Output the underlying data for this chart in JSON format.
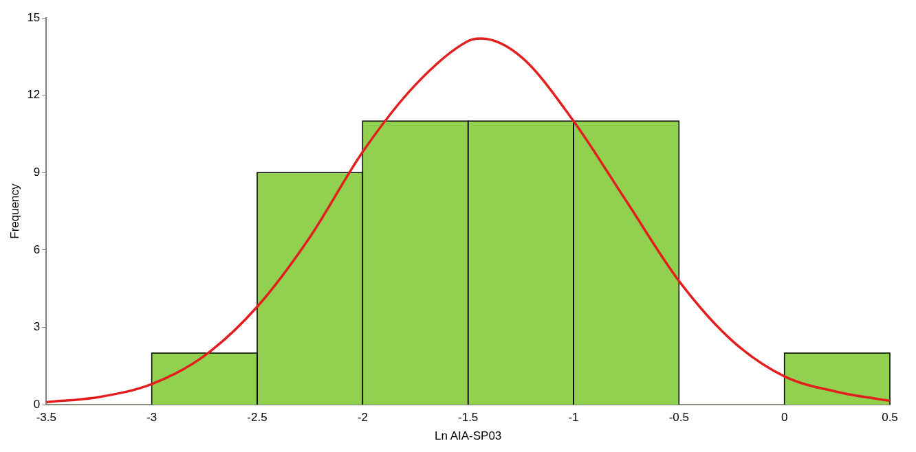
{
  "chart_data": {
    "type": "histogram",
    "xlabel": "Ln AIA-SP03",
    "ylabel": "Frequency",
    "bins": [
      -3.5,
      -3,
      -2.5,
      -2,
      -1.5,
      -1,
      -0.5,
      0,
      0.5
    ],
    "values": [
      0,
      2,
      9,
      11,
      11,
      11,
      0,
      2
    ],
    "color": "#92d050",
    "series": [
      {
        "type": "line",
        "color": "#e31e1e",
        "x": [
          -3.5,
          -3.25,
          -3,
          -2.75,
          -2.5,
          -2.25,
          -2,
          -1.75,
          -1.5,
          -1.44,
          -1.25,
          -1,
          -0.75,
          -0.5,
          -0.25,
          0,
          0.25,
          0.5
        ],
        "values": [
          0.1,
          0.3,
          0.8,
          1.9,
          3.8,
          6.5,
          9.8,
          12.4,
          14.1,
          14.2,
          13.5,
          11,
          7.9,
          4.8,
          2.5,
          1.1,
          0.5,
          0.15
        ]
      }
    ],
    "marker": "none",
    "line_style": "solid",
    "xlim": [
      -3.5,
      0.5
    ],
    "xticks": [
      -3.5,
      -3,
      -2.5,
      -2,
      -1.5,
      -1,
      -0.5,
      0,
      0.5
    ],
    "ylim": [
      0,
      15
    ],
    "yticks": [
      0,
      3,
      6,
      9,
      12,
      15
    ]
  }
}
